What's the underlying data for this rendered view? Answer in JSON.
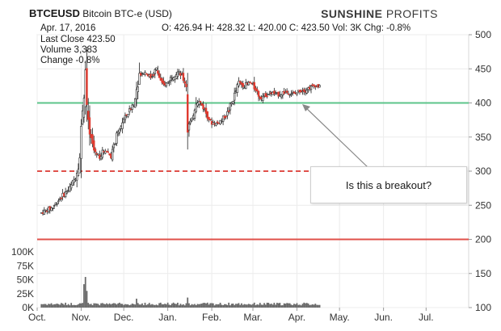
{
  "header": {
    "ticker": "BTCEUSD",
    "name": "Bitcoin BTC-e (USD)",
    "date": "Apr. 17, 2016",
    "ohlc": "O: 426.94  H: 428.32  L: 420.00  C: 423.50  Vol: 3K  Chg: -0.8%",
    "logo_bold": "SUNSHINE",
    "logo_light": "PROFITS"
  },
  "stats": {
    "last_close": "Last Close 423.50",
    "volume": "Volume 3,383",
    "change": "Change -0.8%"
  },
  "annotation": {
    "text": "Is this a breakout?"
  },
  "chart_data": {
    "type": "candlestick",
    "price_axis": {
      "ticks": [
        "500",
        "450",
        "400",
        "350",
        "300",
        "250",
        "200",
        "150",
        "100"
      ],
      "ylim": [
        100,
        500
      ]
    },
    "volume_axis": {
      "ticks": [
        "100K",
        "75K",
        "50K",
        "25K",
        "0K"
      ],
      "ylim": [
        0,
        100000
      ]
    },
    "x_ticks": [
      "Oct.",
      "Nov.",
      "Dec.",
      "Jan.",
      "Feb.",
      "Mar.",
      "Apr.",
      "May.",
      "Jun.",
      "Jul."
    ],
    "x_range": [
      "2015-10-01",
      "2016-07-31"
    ],
    "levels": [
      {
        "value": 400,
        "style": "solid",
        "color": "#5cc48a"
      },
      {
        "value": 300,
        "style": "dashed",
        "color": "#e0504a"
      },
      {
        "value": 200,
        "style": "solid",
        "color": "#e0504a"
      }
    ],
    "grid": true,
    "price_path": [
      [
        "2015-10-04",
        239
      ],
      [
        "2015-10-08",
        243
      ],
      [
        "2015-10-12",
        247
      ],
      [
        "2015-10-16",
        258
      ],
      [
        "2015-10-20",
        266
      ],
      [
        "2015-10-24",
        275
      ],
      [
        "2015-10-28",
        292
      ],
      [
        "2015-10-31",
        320
      ],
      [
        "2015-11-02",
        395
      ],
      [
        "2015-11-04",
        445
      ],
      [
        "2015-11-05",
        370
      ],
      [
        "2015-11-07",
        355
      ],
      [
        "2015-11-10",
        330
      ],
      [
        "2015-11-14",
        322
      ],
      [
        "2015-11-18",
        332
      ],
      [
        "2015-11-22",
        322
      ],
      [
        "2015-11-26",
        350
      ],
      [
        "2015-11-30",
        372
      ],
      [
        "2015-12-03",
        382
      ],
      [
        "2015-12-06",
        392
      ],
      [
        "2015-12-09",
        405
      ],
      [
        "2015-12-12",
        442
      ],
      [
        "2015-12-16",
        445
      ],
      [
        "2015-12-20",
        438
      ],
      [
        "2015-12-24",
        450
      ],
      [
        "2015-12-28",
        425
      ],
      [
        "2016-01-01",
        430
      ],
      [
        "2016-01-04",
        440
      ],
      [
        "2016-01-08",
        445
      ],
      [
        "2016-01-11",
        440
      ],
      [
        "2016-01-14",
        425
      ],
      [
        "2016-01-15",
        365
      ],
      [
        "2016-01-18",
        375
      ],
      [
        "2016-01-21",
        405
      ],
      [
        "2016-01-24",
        400
      ],
      [
        "2016-01-27",
        390
      ],
      [
        "2016-01-31",
        372
      ],
      [
        "2016-02-04",
        370
      ],
      [
        "2016-02-08",
        375
      ],
      [
        "2016-02-12",
        385
      ],
      [
        "2016-02-16",
        405
      ],
      [
        "2016-02-20",
        430
      ],
      [
        "2016-02-24",
        425
      ],
      [
        "2016-02-28",
        430
      ],
      [
        "2016-03-03",
        420
      ],
      [
        "2016-03-06",
        408
      ],
      [
        "2016-03-10",
        412
      ],
      [
        "2016-03-14",
        415
      ],
      [
        "2016-03-18",
        412
      ],
      [
        "2016-03-22",
        415
      ],
      [
        "2016-03-26",
        416
      ],
      [
        "2016-03-30",
        413
      ],
      [
        "2016-04-03",
        418
      ],
      [
        "2016-04-07",
        420
      ],
      [
        "2016-04-11",
        423
      ],
      [
        "2016-04-14",
        426
      ],
      [
        "2016-04-17",
        423.5
      ]
    ],
    "volume_spikes": [
      [
        "2015-11-03",
        42000
      ],
      [
        "2015-11-04",
        55000
      ],
      [
        "2015-11-05",
        30000
      ],
      [
        "2016-01-15",
        18000
      ],
      [
        "2015-12-10",
        16000
      ]
    ]
  }
}
